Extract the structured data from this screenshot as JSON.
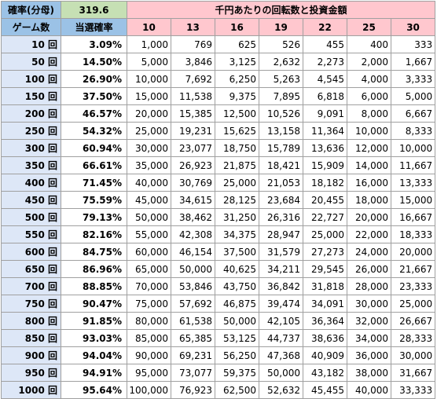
{
  "header": {
    "probability_label": "確率(分母)",
    "probability_value": "319.6",
    "section_title": "千円あたりの回転数と投資金額",
    "games_label": "ゲーム数",
    "win_rate_label": "当選確率",
    "spin_columns": [
      "10",
      "13",
      "16",
      "19",
      "22",
      "25",
      "30"
    ]
  },
  "rows": [
    {
      "games": "10 回",
      "rate": "3.09%",
      "values": [
        "1,000",
        "769",
        "625",
        "526",
        "455",
        "400",
        "333"
      ]
    },
    {
      "games": "50 回",
      "rate": "14.50%",
      "values": [
        "5,000",
        "3,846",
        "3,125",
        "2,632",
        "2,273",
        "2,000",
        "1,667"
      ]
    },
    {
      "games": "100 回",
      "rate": "26.90%",
      "values": [
        "10,000",
        "7,692",
        "6,250",
        "5,263",
        "4,545",
        "4,000",
        "3,333"
      ]
    },
    {
      "games": "150 回",
      "rate": "37.50%",
      "values": [
        "15,000",
        "11,538",
        "9,375",
        "7,895",
        "6,818",
        "6,000",
        "5,000"
      ]
    },
    {
      "games": "200 回",
      "rate": "46.57%",
      "values": [
        "20,000",
        "15,385",
        "12,500",
        "10,526",
        "9,091",
        "8,000",
        "6,667"
      ]
    },
    {
      "games": "250 回",
      "rate": "54.32%",
      "values": [
        "25,000",
        "19,231",
        "15,625",
        "13,158",
        "11,364",
        "10,000",
        "8,333"
      ]
    },
    {
      "games": "300 回",
      "rate": "60.94%",
      "values": [
        "30,000",
        "23,077",
        "18,750",
        "15,789",
        "13,636",
        "12,000",
        "10,000"
      ]
    },
    {
      "games": "350 回",
      "rate": "66.61%",
      "values": [
        "35,000",
        "26,923",
        "21,875",
        "18,421",
        "15,909",
        "14,000",
        "11,667"
      ]
    },
    {
      "games": "400 回",
      "rate": "71.45%",
      "values": [
        "40,000",
        "30,769",
        "25,000",
        "21,053",
        "18,182",
        "16,000",
        "13,333"
      ]
    },
    {
      "games": "450 回",
      "rate": "75.59%",
      "values": [
        "45,000",
        "34,615",
        "28,125",
        "23,684",
        "20,455",
        "18,000",
        "15,000"
      ]
    },
    {
      "games": "500 回",
      "rate": "79.13%",
      "values": [
        "50,000",
        "38,462",
        "31,250",
        "26,316",
        "22,727",
        "20,000",
        "16,667"
      ]
    },
    {
      "games": "550 回",
      "rate": "82.16%",
      "values": [
        "55,000",
        "42,308",
        "34,375",
        "28,947",
        "25,000",
        "22,000",
        "18,333"
      ]
    },
    {
      "games": "600 回",
      "rate": "84.75%",
      "values": [
        "60,000",
        "46,154",
        "37,500",
        "31,579",
        "27,273",
        "24,000",
        "20,000"
      ]
    },
    {
      "games": "650 回",
      "rate": "86.96%",
      "values": [
        "65,000",
        "50,000",
        "40,625",
        "34,211",
        "29,545",
        "26,000",
        "21,667"
      ]
    },
    {
      "games": "700 回",
      "rate": "88.85%",
      "values": [
        "70,000",
        "53,846",
        "43,750",
        "36,842",
        "31,818",
        "28,000",
        "23,333"
      ]
    },
    {
      "games": "750 回",
      "rate": "90.47%",
      "values": [
        "75,000",
        "57,692",
        "46,875",
        "39,474",
        "34,091",
        "30,000",
        "25,000"
      ]
    },
    {
      "games": "800 回",
      "rate": "91.85%",
      "values": [
        "80,000",
        "61,538",
        "50,000",
        "42,105",
        "36,364",
        "32,000",
        "26,667"
      ]
    },
    {
      "games": "850 回",
      "rate": "93.03%",
      "values": [
        "85,000",
        "65,385",
        "53,125",
        "44,737",
        "38,636",
        "34,000",
        "28,333"
      ]
    },
    {
      "games": "900 回",
      "rate": "94.04%",
      "values": [
        "90,000",
        "69,231",
        "56,250",
        "47,368",
        "40,909",
        "36,000",
        "30,000"
      ]
    },
    {
      "games": "950 回",
      "rate": "94.91%",
      "values": [
        "95,000",
        "73,077",
        "59,375",
        "50,000",
        "43,182",
        "38,000",
        "31,667"
      ]
    },
    {
      "games": "1000 回",
      "rate": "95.64%",
      "values": [
        "100,000",
        "76,923",
        "62,500",
        "52,632",
        "45,455",
        "40,000",
        "33,333"
      ]
    }
  ]
}
